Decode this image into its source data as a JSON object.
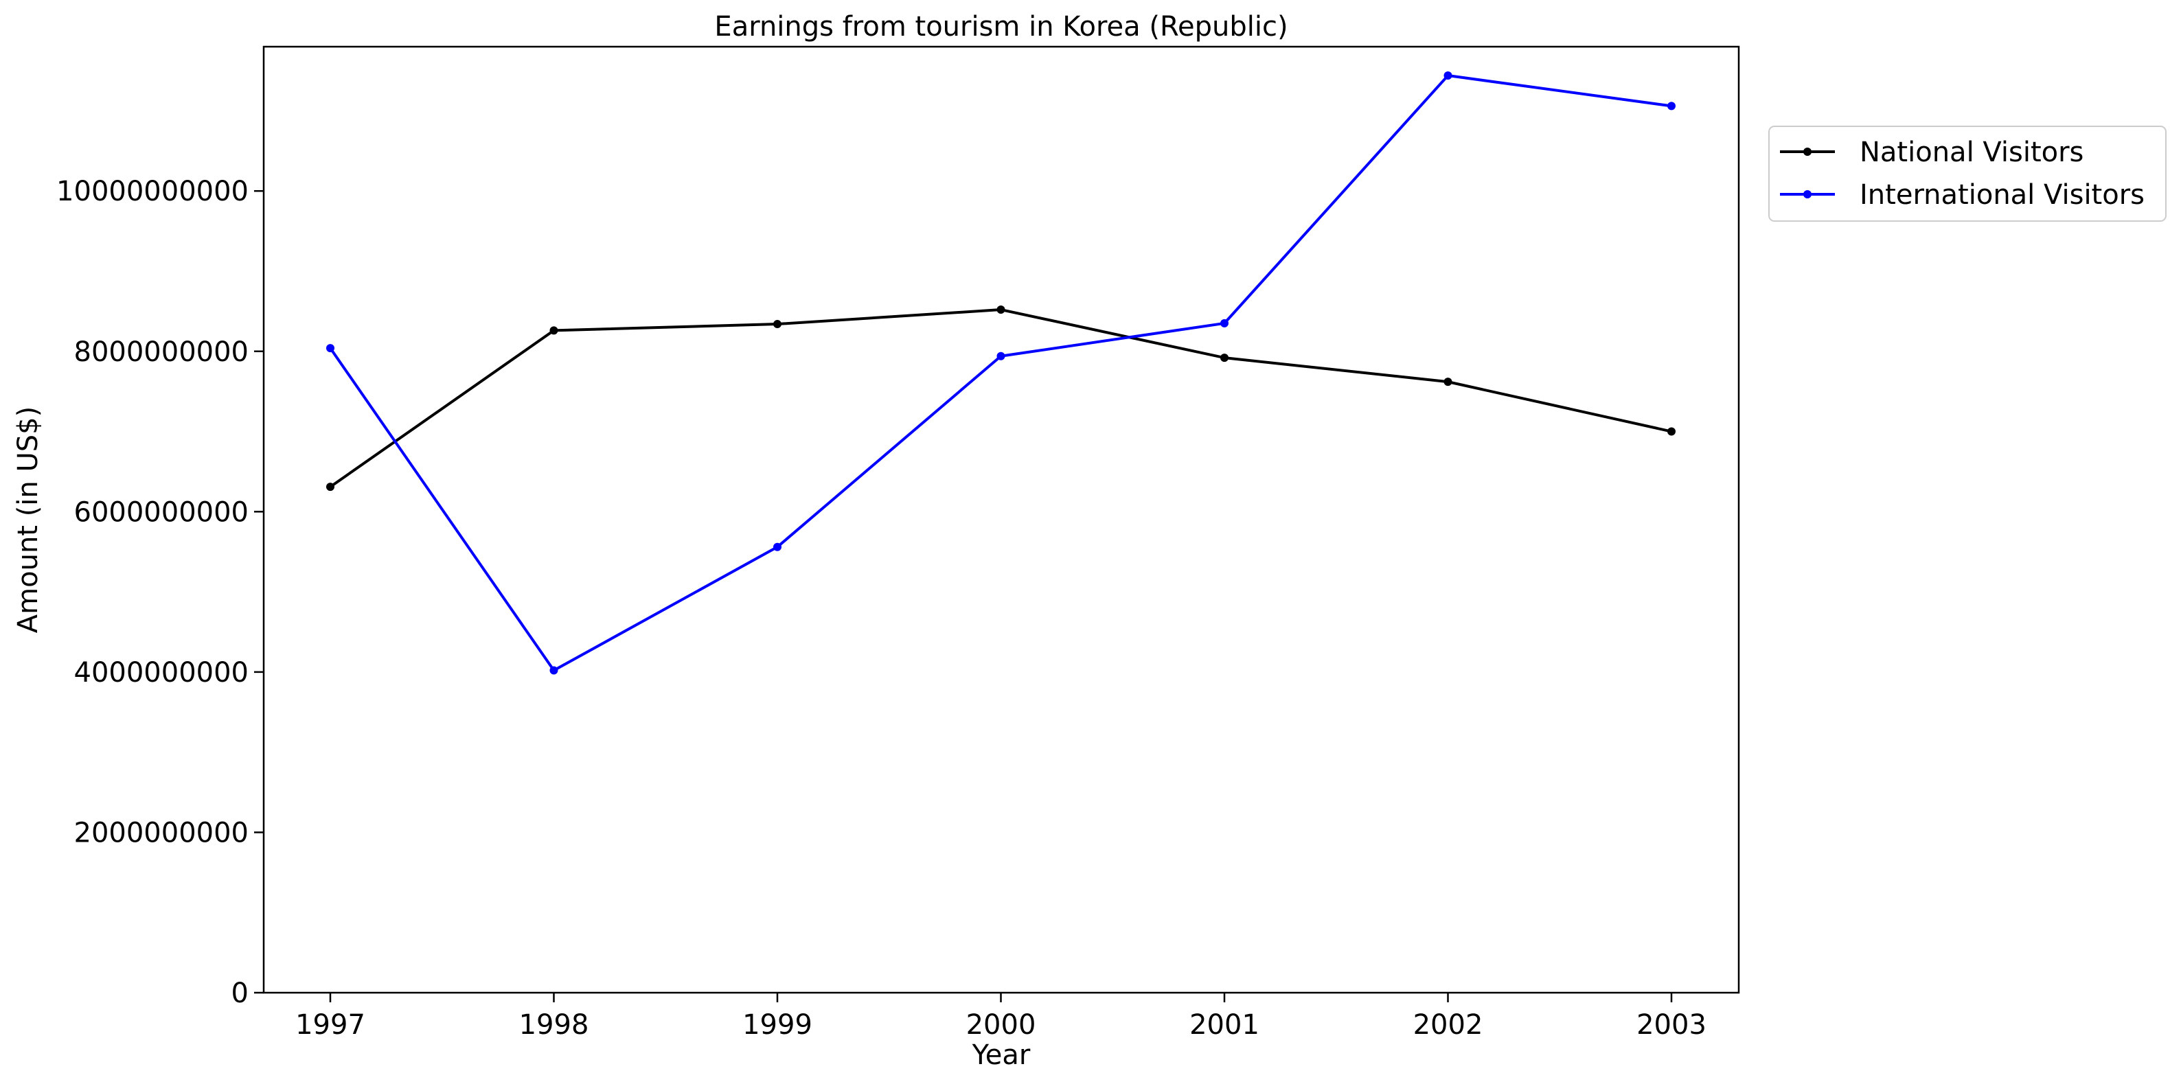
{
  "chart_data": {
    "type": "line",
    "title": "Earnings from tourism in Korea (Republic)",
    "xlabel": "Year",
    "ylabel": "Amount (in US$)",
    "x": [
      "1997",
      "1998",
      "1999",
      "2000",
      "2001",
      "2002",
      "2003"
    ],
    "series": [
      {
        "name": "National Visitors",
        "color": "#000000",
        "values": [
          6310000000,
          8260000000,
          8340000000,
          8520000000,
          7920000000,
          7620000000,
          7000000000
        ]
      },
      {
        "name": "International Visitors",
        "color": "#0000ff",
        "values": [
          8040000000,
          4020000000,
          5560000000,
          7940000000,
          8350000000,
          11440000000,
          11060000000
        ]
      }
    ],
    "ylim": [
      0,
      11800000000
    ],
    "yticks": [
      "0",
      "2000000000",
      "4000000000",
      "6000000000",
      "8000000000",
      "10000000000"
    ],
    "grid": false,
    "legend_position": "outside-top-right"
  }
}
